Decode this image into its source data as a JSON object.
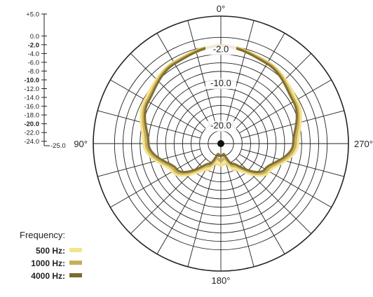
{
  "chart_data": {
    "type": "polar",
    "subtype": "microphone polar pattern (cardioid)",
    "angle_labels": [
      {
        "angle": 0,
        "text": "0°"
      },
      {
        "angle": 90,
        "text": "90°"
      },
      {
        "angle": 180,
        "text": "180°"
      },
      {
        "angle": 270,
        "text": "270°"
      }
    ],
    "radial_axis": {
      "unit": "dB",
      "max": 5.0,
      "min": -25.0,
      "ticks": [
        {
          "value": 5.0,
          "text": "+5.0",
          "bold": false
        },
        {
          "value": 0.0,
          "text": "0.0",
          "bold": false
        },
        {
          "value": -2.0,
          "text": "-2.0",
          "bold": true
        },
        {
          "value": -4.0,
          "text": "-4.0",
          "bold": false
        },
        {
          "value": -6.0,
          "text": "-6.0",
          "bold": false
        },
        {
          "value": -8.0,
          "text": "-8.0",
          "bold": false
        },
        {
          "value": -10.0,
          "text": "-10.0",
          "bold": true
        },
        {
          "value": -12.0,
          "text": "-12.0",
          "bold": false
        },
        {
          "value": -14.0,
          "text": "-14.0",
          "bold": false
        },
        {
          "value": -16.0,
          "text": "-16.0",
          "bold": false
        },
        {
          "value": -18.0,
          "text": "-18.0",
          "bold": false
        },
        {
          "value": -20.0,
          "text": "-20.0",
          "bold": true
        },
        {
          "value": -22.0,
          "text": "-22.0",
          "bold": false
        },
        {
          "value": -24.0,
          "text": "-24.0",
          "bold": false
        },
        {
          "value": -25.0,
          "text": "-25.0",
          "bold": false
        }
      ],
      "inner_labels": [
        {
          "value": -2.0,
          "text": "-2.0"
        },
        {
          "value": -10.0,
          "text": "-10.0"
        },
        {
          "value": -20.0,
          "text": "-20.0"
        }
      ]
    },
    "grid": {
      "rings_db": [
        5,
        0,
        -2,
        -4,
        -6,
        -8,
        -10,
        -12,
        -14,
        -16,
        -18,
        -20,
        -22
      ],
      "spoke_step_deg": 15
    },
    "legend": {
      "title": "Frequency:",
      "placement": "bottom-left",
      "entries": [
        {
          "label": "500 Hz:",
          "color": "#f4e58c"
        },
        {
          "label": "1000 Hz:",
          "color": "#c8ad5a"
        },
        {
          "label": "4000 Hz:",
          "color": "#7c6b2c"
        }
      ]
    },
    "series": [
      {
        "frequency": "500 Hz",
        "color": "#f4e58c",
        "angles": [
          0,
          30,
          60,
          90,
          120,
          150,
          165,
          180
        ],
        "values_db": [
          -2.0,
          -3.0,
          -4.5,
          -7.0,
          -12.0,
          -18.0,
          -20.5,
          -20.0
        ]
      },
      {
        "frequency": "1000 Hz",
        "color": "#c8ad5a",
        "angles": [
          0,
          30,
          60,
          90,
          120,
          150,
          165,
          180
        ],
        "values_db": [
          -2.0,
          -3.1,
          -5.0,
          -7.5,
          -12.5,
          -19.0,
          -21.5,
          -21.0
        ]
      },
      {
        "frequency": "4000 Hz",
        "color": "#7c6b2c",
        "angles": [
          0,
          30,
          60,
          90,
          120,
          150,
          165,
          180
        ],
        "values_db": [
          -2.0,
          -3.3,
          -5.3,
          -8.0,
          -13.0,
          -19.5,
          -22.5,
          -22.0
        ]
      }
    ]
  }
}
